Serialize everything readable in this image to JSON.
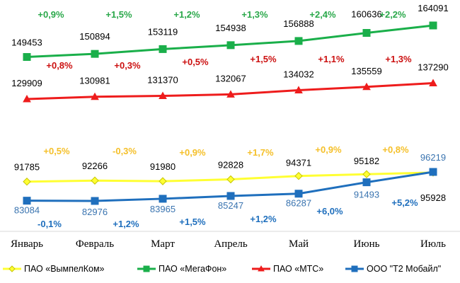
{
  "chart_data": {
    "type": "line",
    "title": "",
    "xlabel": "",
    "ylabel": "",
    "grid": false,
    "legend_position": "bottom",
    "categories": [
      "Январь",
      "Февраль",
      "Март",
      "Апрель",
      "Май",
      "Июнь",
      "Июль"
    ],
    "series": [
      {
        "name": "ПАО «ВымпелКом»",
        "key": "vimpelcom",
        "color": "#ffff33",
        "label_color": "#000000",
        "pct_color": "#f5c02a",
        "marker": "diamond",
        "marker_fill": "#ffff33",
        "marker_stroke": "#c6c600",
        "values": [
          91785,
          92266,
          91980,
          92828,
          94371,
          95182,
          95928
        ],
        "value_labels": [
          "91785",
          "92266",
          "91980",
          "92828",
          "94371",
          "95182",
          "95928"
        ],
        "changes": [
          "+0,5%",
          "-0,3%",
          "+0,9%",
          "+1,7%",
          "+0,9%",
          "+0,8%"
        ]
      },
      {
        "name": "ПАО «МегаФон»",
        "key": "megafon",
        "color": "#1aaf4a",
        "label_color": "#000000",
        "pct_color": "#2aa84a",
        "marker": "square",
        "marker_fill": "#1aaf4a",
        "marker_stroke": "#1aaf4a",
        "values": [
          149453,
          150894,
          153119,
          154938,
          156888,
          160636,
          164091
        ],
        "value_labels": [
          "149453",
          "150894",
          "153119",
          "154938",
          "156888",
          "160636",
          "164091"
        ],
        "changes": [
          "+0,9%",
          "+1,5%",
          "+1,2%",
          "+1,3%",
          "+2,4%",
          "+2,2%"
        ]
      },
      {
        "name": "ПАО «МТС»",
        "key": "mts",
        "color": "#ee1c1c",
        "label_color": "#000000",
        "pct_color": "#cc1111",
        "marker": "triangle",
        "marker_fill": "#ee1c1c",
        "marker_stroke": "#ee1c1c",
        "values": [
          129909,
          130981,
          131370,
          132067,
          134032,
          135559,
          137290
        ],
        "value_labels": [
          "129909",
          "130981",
          "131370",
          "132067",
          "134032",
          "135559",
          "137290"
        ],
        "changes": [
          "+0,8%",
          "+0,3%",
          "+0,5%",
          "+1,5%",
          "+1,1%",
          "+1,3%"
        ]
      },
      {
        "name": "ООО \"Т2 Мобайл\"",
        "key": "t2",
        "color": "#1f6fbd",
        "label_color": "#3a74b0",
        "pct_color": "#1f6fbd",
        "marker": "square",
        "marker_fill": "#1f6fbd",
        "marker_stroke": "#1f6fbd",
        "values": [
          83084,
          82976,
          83965,
          85247,
          86287,
          91493,
          96219
        ],
        "value_labels": [
          "83084",
          "82976",
          "83965",
          "85247",
          "86287",
          "91493",
          "96219"
        ],
        "changes": [
          "-0,1%",
          "+1,2%",
          "+1,5%",
          "+1,2%",
          "+6,0%",
          "+5,2%"
        ]
      }
    ]
  }
}
